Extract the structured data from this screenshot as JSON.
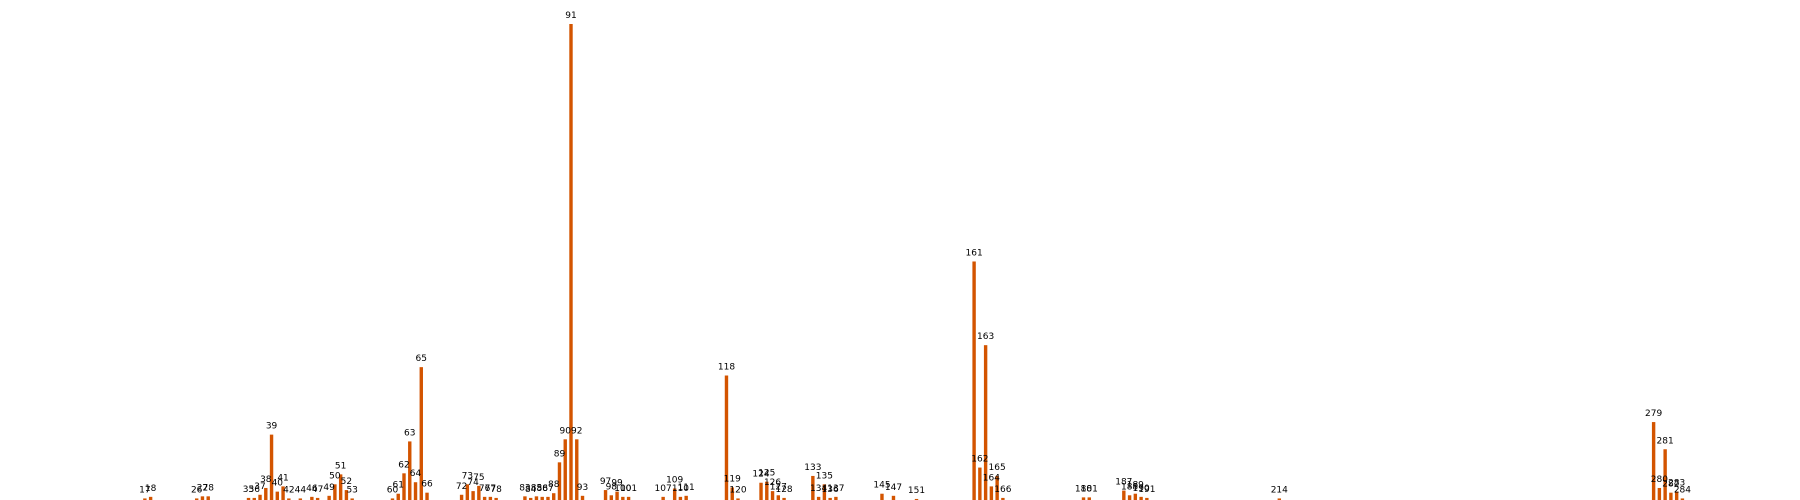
{
  "chart_data": {
    "type": "bar",
    "bar_color": "#d35400",
    "background": "#ffffff",
    "grid": false,
    "axes_visible": false,
    "xlim": [
      0,
      290
    ],
    "ylim": [
      0,
      91
    ],
    "bars": [
      {
        "x": 13,
        "label": "17",
        "value": 0.3
      },
      {
        "x": 14,
        "label": "18",
        "value": 0.6
      },
      {
        "x": 22,
        "label": "26",
        "value": 0.3
      },
      {
        "x": 23,
        "label": "27",
        "value": 0.7
      },
      {
        "x": 24,
        "label": "28",
        "value": 0.7
      },
      {
        "x": 31,
        "label": "35",
        "value": 0.4
      },
      {
        "x": 32,
        "label": "36",
        "value": 0.4
      },
      {
        "x": 33,
        "label": "37",
        "value": 1.0
      },
      {
        "x": 34,
        "label": "38",
        "value": 2.3
      },
      {
        "x": 35,
        "label": "39",
        "value": 12.5
      },
      {
        "x": 36,
        "label": "40",
        "value": 1.6
      },
      {
        "x": 37,
        "label": "41",
        "value": 2.6
      },
      {
        "x": 38,
        "label": "42",
        "value": 0.3
      },
      {
        "x": 40,
        "label": "44",
        "value": 0.3
      },
      {
        "x": 42,
        "label": "46",
        "value": 0.6
      },
      {
        "x": 43,
        "label": "47",
        "value": 0.4
      },
      {
        "x": 45,
        "label": "49",
        "value": 0.8
      },
      {
        "x": 46,
        "label": "50",
        "value": 3.0
      },
      {
        "x": 47,
        "label": "51",
        "value": 4.9
      },
      {
        "x": 48,
        "label": "52",
        "value": 1.9
      },
      {
        "x": 49,
        "label": "53",
        "value": 0.3
      },
      {
        "x": 56,
        "label": "60",
        "value": 0.3
      },
      {
        "x": 57,
        "label": "61",
        "value": 1.2
      },
      {
        "x": 58,
        "label": "62",
        "value": 5.1
      },
      {
        "x": 59,
        "label": "63",
        "value": 11.2
      },
      {
        "x": 60,
        "label": "64",
        "value": 3.4
      },
      {
        "x": 61,
        "label": "65",
        "value": 25.4
      },
      {
        "x": 62,
        "label": "66",
        "value": 1.4
      },
      {
        "x": 68,
        "label": "72",
        "value": 1.0
      },
      {
        "x": 69,
        "label": "73",
        "value": 3.0
      },
      {
        "x": 70,
        "label": "74",
        "value": 1.7
      },
      {
        "x": 71,
        "label": "75",
        "value": 2.7
      },
      {
        "x": 72,
        "label": "76",
        "value": 0.6
      },
      {
        "x": 73,
        "label": "77",
        "value": 0.6
      },
      {
        "x": 74,
        "label": "78",
        "value": 0.4
      },
      {
        "x": 79,
        "label": "83",
        "value": 0.7
      },
      {
        "x": 80,
        "label": "84",
        "value": 0.4
      },
      {
        "x": 81,
        "label": "85",
        "value": 0.7
      },
      {
        "x": 82,
        "label": "86",
        "value": 0.6
      },
      {
        "x": 83,
        "label": "87",
        "value": 0.6
      },
      {
        "x": 84,
        "label": "88",
        "value": 1.3
      },
      {
        "x": 85,
        "label": "89",
        "value": 7.2
      },
      {
        "x": 86,
        "label": "90",
        "value": 11.6
      },
      {
        "x": 87,
        "label": "91",
        "value": 91
      },
      {
        "x": 88,
        "label": "92",
        "value": 11.6
      },
      {
        "x": 89,
        "label": "93",
        "value": 0.8
      },
      {
        "x": 93,
        "label": "97",
        "value": 1.9
      },
      {
        "x": 94,
        "label": "98",
        "value": 0.9
      },
      {
        "x": 95,
        "label": "99",
        "value": 1.6
      },
      {
        "x": 96,
        "label": "100",
        "value": 0.6
      },
      {
        "x": 97,
        "label": "101",
        "value": 0.6
      },
      {
        "x": 103,
        "label": "107",
        "value": 0.6
      },
      {
        "x": 105,
        "label": "109",
        "value": 2.2
      },
      {
        "x": 106,
        "label": "110",
        "value": 0.6
      },
      {
        "x": 107,
        "label": "111",
        "value": 0.8
      },
      {
        "x": 114,
        "label": "118",
        "value": 23.8
      },
      {
        "x": 115,
        "label": "119",
        "value": 2.4
      },
      {
        "x": 116,
        "label": "120",
        "value": 0.3
      },
      {
        "x": 120,
        "label": "124",
        "value": 3.3
      },
      {
        "x": 121,
        "label": "125",
        "value": 3.5
      },
      {
        "x": 122,
        "label": "126",
        "value": 1.7
      },
      {
        "x": 123,
        "label": "127",
        "value": 0.9
      },
      {
        "x": 124,
        "label": "128",
        "value": 0.4
      },
      {
        "x": 129,
        "label": "133",
        "value": 4.6
      },
      {
        "x": 130,
        "label": "134",
        "value": 0.6
      },
      {
        "x": 131,
        "label": "135",
        "value": 3.0
      },
      {
        "x": 132,
        "label": "136",
        "value": 0.4
      },
      {
        "x": 133,
        "label": "137",
        "value": 0.6
      },
      {
        "x": 141,
        "label": "145",
        "value": 1.2
      },
      {
        "x": 143,
        "label": "147",
        "value": 0.8
      },
      {
        "x": 147,
        "label": "151",
        "value": 0.2
      },
      {
        "x": 157,
        "label": "161",
        "value": 45.6
      },
      {
        "x": 158,
        "label": "162",
        "value": 6.2
      },
      {
        "x": 159,
        "label": "163",
        "value": 29.6
      },
      {
        "x": 160,
        "label": "164",
        "value": 2.6
      },
      {
        "x": 161,
        "label": "165",
        "value": 4.6
      },
      {
        "x": 162,
        "label": "166",
        "value": 0.4
      },
      {
        "x": 176,
        "label": "180",
        "value": 0.5
      },
      {
        "x": 177,
        "label": "181",
        "value": 0.5
      },
      {
        "x": 183,
        "label": "187",
        "value": 1.8
      },
      {
        "x": 184,
        "label": "188",
        "value": 0.9
      },
      {
        "x": 185,
        "label": "189",
        "value": 1.2
      },
      {
        "x": 186,
        "label": "190",
        "value": 0.6
      },
      {
        "x": 187,
        "label": "191",
        "value": 0.4
      },
      {
        "x": 210,
        "label": "214",
        "value": 0.3
      },
      {
        "x": 275,
        "label": "279",
        "value": 14.9
      },
      {
        "x": 276,
        "label": "280",
        "value": 2.3
      },
      {
        "x": 277,
        "label": "281",
        "value": 9.7
      },
      {
        "x": 278,
        "label": "282",
        "value": 1.4
      },
      {
        "x": 279,
        "label": "283",
        "value": 1.6
      },
      {
        "x": 280,
        "label": "284",
        "value": 0.3
      }
    ]
  }
}
